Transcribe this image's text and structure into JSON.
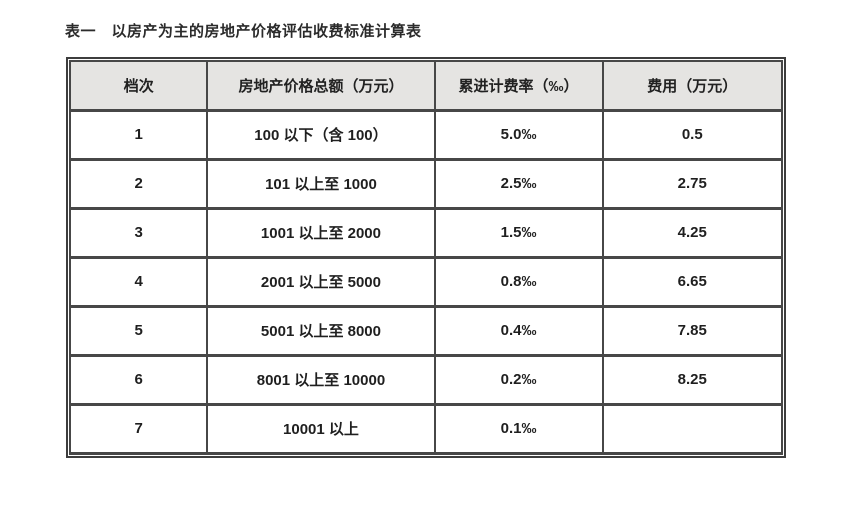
{
  "caption": "表一　以房产为主的房地产价格评估收费标准计算表",
  "table": {
    "columns": [
      "档次",
      "房地产价格总额（万元）",
      "累进计费率（‰）",
      "费用（万元）"
    ],
    "rows": [
      [
        "1",
        "100 以下（含 100）",
        "5.0‰",
        "0.5"
      ],
      [
        "2",
        "101 以上至 1000",
        "2.5‰",
        "2.75"
      ],
      [
        "3",
        "1001 以上至 2000",
        "1.5‰",
        "4.25"
      ],
      [
        "4",
        "2001 以上至 5000",
        "0.8‰",
        "6.65"
      ],
      [
        "5",
        "5001 以上至 8000",
        "0.4‰",
        "7.85"
      ],
      [
        "6",
        "8001 以上至 10000",
        "0.2‰",
        "8.25"
      ],
      [
        "7",
        "10001 以上",
        "0.1‰",
        ""
      ]
    ]
  },
  "colors": {
    "outer_border": "#3d3d3d",
    "cell_border": "#474747",
    "header_background": "#e5e4e2",
    "text": "#1f1f1f"
  }
}
